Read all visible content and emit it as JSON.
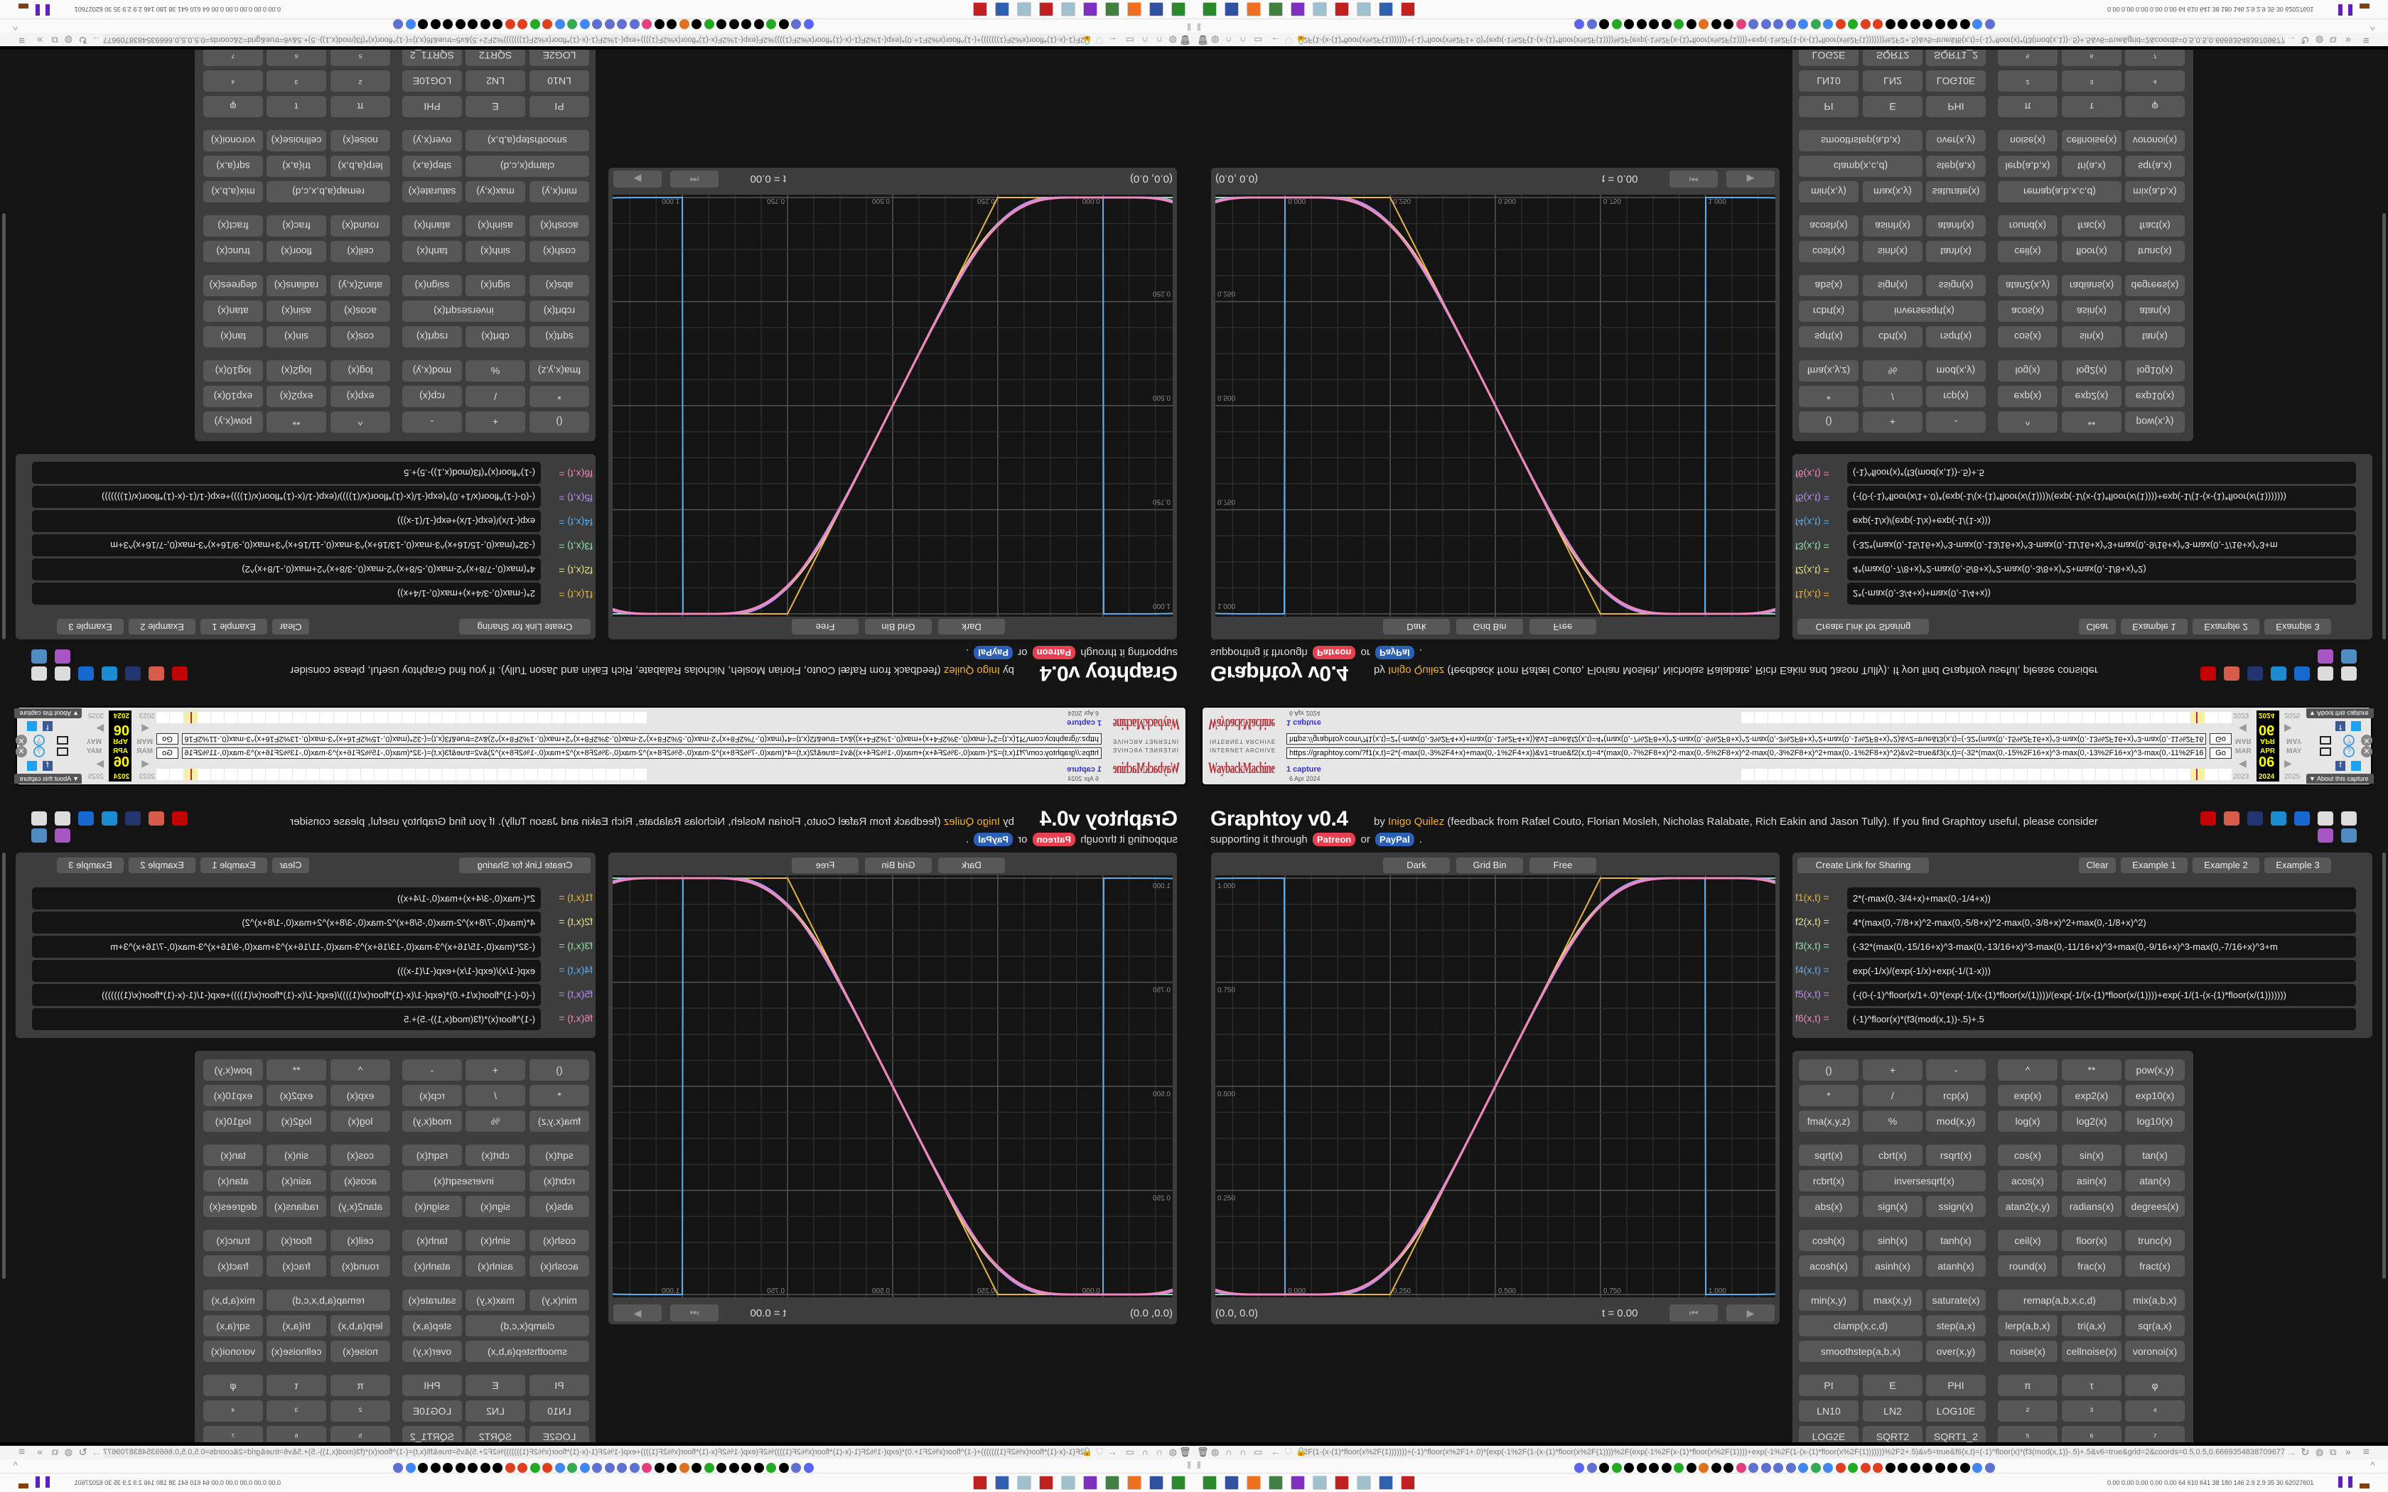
{
  "wayback": {
    "archive_label": "INTERNET ARCHIVE",
    "logo_text": "WaybackMachine",
    "url": "https://graphtoy.com/?f1(x,t)=2*(-max(0,-3%2F4+x)+max(0,-1%2F4+x))&v1=true&f2(x,t)=4*(max(0,-7%2F8+x)^2-max(0,-5%2F8+x)^2-max(0,-3%2F8+x)^2+max(0,-1%2F8+x)^2)&v2=true&f3(x,t)=(-32*(max(0,-15%2F16+x)^3-max(0,-13%2F16+x)^3-max(0,-11%2F16+x)^3",
    "go_label": "Go",
    "captures": "1 capture",
    "capture_date": "6 Apr 2024",
    "months": [
      "MAR",
      "APR",
      "MAY"
    ],
    "day": "06",
    "years": [
      "2023",
      "2024",
      "2025"
    ],
    "about_label": "▼ About this capture"
  },
  "header": {
    "title": "Graphtoy v0.4",
    "by": "by",
    "author": "Inigo Quilez",
    "credits": "(feedback from Rafæl Couto, Florian Mosleh, Nicholas Ralabate, Rich Eakin and Jason Tully). If you find Graphtoy useful, please consider",
    "support_text": "supporting it through",
    "patreon": "Patreon",
    "or": "or",
    "paypal": "PayPal",
    "period": ".",
    "social_icons": [
      {
        "name": "youtube-icon",
        "color": "#e00000"
      },
      {
        "name": "patreon-icon",
        "color": "#f96854"
      },
      {
        "name": "paypal-icon",
        "color": "#253b80"
      },
      {
        "name": "twitter-icon",
        "color": "#1da1f2"
      },
      {
        "name": "facebook-icon",
        "color": "#1877f2"
      },
      {
        "name": "threads-icon",
        "color": "#ffffff"
      },
      {
        "name": "tiktok-icon",
        "color": "#ffffff"
      },
      {
        "name": "mastodon-icon",
        "color": "#c060e0"
      },
      {
        "name": "tv-icon",
        "color": "#5aa0e0"
      }
    ]
  },
  "graph": {
    "buttons": [
      "Dark",
      "Grid Bin",
      "Free"
    ],
    "coords": "(0.0, 0.0)",
    "time": "t = 0.00",
    "x_ticks": [
      "0.000",
      "0.250",
      "0.500",
      "0.750",
      "1.000"
    ],
    "y_ticks": [
      "1.000",
      "0.750",
      "0.500",
      "0.250"
    ]
  },
  "chart_data": {
    "type": "line",
    "xlim": [
      -0.166,
      1.166
    ],
    "ylim": [
      0,
      1
    ],
    "grid": true,
    "x_ticks": [
      0,
      0.25,
      0.5,
      0.75,
      1.0
    ],
    "y_ticks": [
      0.25,
      0.5,
      0.75,
      1.0
    ],
    "series": [
      {
        "name": "f1(x,t)",
        "formula": "2*(-max(0,-3/4+x)+max(0,-1/4+x))",
        "color": "#e8b440"
      },
      {
        "name": "f2(x,t)",
        "formula": "4*(max(0,-7/8+x)^2-max(0,-5/8+x)^2-max(0,-3/8+x)^2+max(0,-1/8+x)^2)",
        "color": "#e6e68a"
      },
      {
        "name": "f3(x,t)",
        "formula": "(-32*(max(0,-15/16+x)^3-max(0,-13/16+x)^3-max(0,-11/16+x)^3+max(0,-9/16+x)^3-max(0,-7/16+x)^3+m",
        "color": "#8ee0a8"
      },
      {
        "name": "f4(x,t)",
        "formula": "exp(-1/x)/(exp(-1/x)+exp(-1/(1-x)))",
        "color": "#5aaef0"
      },
      {
        "name": "f5(x,t)",
        "formula": "(-(0-(-1)^floor(x/1+.0)*(exp(-1/(x-(1)*floor(x/(1))))/(exp(-1/(x-(1)*floor(x/(1))))+exp(-1/(1-(x-(1)*floor(x/(1)))))))",
        "color": "#b890f0"
      },
      {
        "name": "f6(x,t)",
        "formula": "(-1)^floor(x)*(f3(mod(x,1))-.5)+.5",
        "color": "#f088b8"
      }
    ]
  },
  "formulas": {
    "buttons": {
      "share": "Create Link for Sharing",
      "clear": "Clear",
      "examples": [
        "Example 1",
        "Example 2",
        "Example 3"
      ]
    },
    "labels": [
      "f1(x,t) =",
      "f2(x,t) =",
      "f3(x,t) =",
      "f4(x,t) =",
      "f5(x,t) =",
      "f6(x,t) ="
    ]
  },
  "function_buttons": [
    [
      [
        [
          "()",
          1
        ],
        [
          "+",
          1
        ],
        [
          "-",
          1
        ],
        [
          "^",
          1
        ],
        [
          "**",
          1
        ],
        [
          "pow(x,y)",
          1
        ]
      ],
      [
        [
          "*",
          1
        ],
        [
          "/",
          1
        ],
        [
          "rcp(x)",
          1
        ],
        [
          "exp(x)",
          1
        ],
        [
          "exp2(x)",
          1
        ],
        [
          "exp10(x)",
          1
        ]
      ],
      [
        [
          "fma(x,y,z)",
          1
        ],
        [
          "%",
          1
        ],
        [
          "mod(x,y)",
          1
        ],
        [
          "log(x)",
          1
        ],
        [
          "log2(x)",
          1
        ],
        [
          "log10(x)",
          1
        ]
      ]
    ],
    [
      [
        [
          "sqrt(x)",
          1
        ],
        [
          "cbrt(x)",
          1
        ],
        [
          "rsqrt(x)",
          1
        ],
        [
          "cos(x)",
          1
        ],
        [
          "sin(x)",
          1
        ],
        [
          "tan(x)",
          1
        ]
      ],
      [
        [
          "rcbrt(x)",
          1
        ],
        [
          "inversesqrt(x)",
          2
        ],
        [
          "acos(x)",
          1
        ],
        [
          "asin(x)",
          1
        ],
        [
          "atan(x)",
          1
        ]
      ],
      [
        [
          "abs(x)",
          1
        ],
        [
          "sign(x)",
          1
        ],
        [
          "ssign(x)",
          1
        ],
        [
          "atan2(x,y)",
          1
        ],
        [
          "radians(x)",
          1
        ],
        [
          "degrees(x)",
          1
        ]
      ]
    ],
    [
      [
        [
          "cosh(x)",
          1
        ],
        [
          "sinh(x)",
          1
        ],
        [
          "tanh(x)",
          1
        ],
        [
          "ceil(x)",
          1
        ],
        [
          "floor(x)",
          1
        ],
        [
          "trunc(x)",
          1
        ]
      ],
      [
        [
          "acosh(x)",
          1
        ],
        [
          "asinh(x)",
          1
        ],
        [
          "atanh(x)",
          1
        ],
        [
          "round(x)",
          1
        ],
        [
          "frac(x)",
          1
        ],
        [
          "fract(x)",
          1
        ]
      ]
    ],
    [
      [
        [
          "min(x,y)",
          1
        ],
        [
          "max(x,y)",
          1
        ],
        [
          "saturate(x)",
          1
        ],
        [
          "remap(a,b,x,c,d)",
          2
        ],
        [
          "mix(a,b,x)",
          1
        ]
      ],
      [
        [
          "clamp(x,c,d)",
          2
        ],
        [
          "step(a,x)",
          1
        ],
        [
          "lerp(a,b,x)",
          1
        ],
        [
          "tri(a,x)",
          1
        ],
        [
          "sqr(a,x)",
          1
        ]
      ],
      [
        [
          "smoothstep(a,b,x)",
          2
        ],
        [
          "over(x,y)",
          1
        ],
        [
          "noise(x)",
          1
        ],
        [
          "cellnoise(x)",
          1
        ],
        [
          "voronoi(x)",
          1
        ]
      ]
    ],
    [
      [
        [
          "PI",
          1
        ],
        [
          "E",
          1
        ],
        [
          "PHI",
          1
        ],
        [
          "π",
          1
        ],
        [
          "τ",
          1
        ],
        [
          "φ",
          1
        ]
      ],
      [
        [
          "LN10",
          1
        ],
        [
          "LN2",
          1
        ],
        [
          "LOG10E",
          1
        ],
        [
          "²",
          1
        ],
        [
          "³",
          1
        ],
        [
          "⁴",
          1
        ]
      ],
      [
        [
          "LOG2E",
          1
        ],
        [
          "SQRT2",
          1
        ],
        [
          "SQRT1_2",
          1
        ],
        [
          "⁵",
          1
        ],
        [
          "⁶",
          1
        ],
        [
          "⁷",
          1
        ]
      ]
    ]
  ],
  "browser": {
    "url": "https://graphtoy.com/?...x%2F(1))))+exp(-1%2F(1-(x-(1)*floor(x%2F(1)))))))+(-1)^floor(x%2F1+.0)*(exp(-1%2F(1-(x-(1)*floor(x%2F(1))))%2F(exp(-1%2F(x-(1)*floor(x%2F(1))))+exp(-1%2F(1-(x-(1)*floor(x%2F(1)))))))%2F2+.5)&v5=true&f6(x,t)=(-1)^floor(x)*(f3(mod(x,1))-.5)+.5&v6=true&grid=2&coords=0.5,0.5,0.6669354838709677",
    "stats": "0.00 0.00 0.00 0.00 0.00  64  610  641  38  180  146  2.9  2.9  35  30  62027601",
    "bookmark_colors": [
      "#5865f2",
      "#6070d0",
      "#000",
      "#2a2",
      "#000",
      "#000",
      "#000",
      "#000",
      "#2a2",
      "#000",
      "#e07020",
      "#000",
      "#000",
      "#e04080",
      "#6070d0",
      "#6070d0",
      "#6070d0",
      "#6070d0",
      "#4285f4",
      "#34a853",
      "#4285f4",
      "#e04020",
      "#2a2",
      "#e04020",
      "#e04020",
      "#000",
      "#000",
      "#000",
      "#000",
      "#000",
      "#000",
      "#000",
      "#4285f4",
      "#6070d0"
    ],
    "taskbar_colors": [
      "#2a8a2a",
      "#3050a0",
      "#f07020",
      "#408040",
      "#8030c0",
      "#a0c0d0",
      "#c02020",
      "#a0c0d0",
      "#3060b0",
      "#c02020"
    ]
  }
}
